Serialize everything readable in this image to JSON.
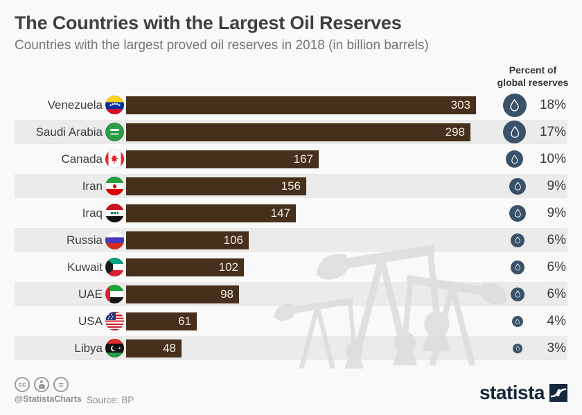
{
  "header": {
    "title": "The Countries with the Largest Oil Reserves",
    "subtitle": "Countries with the largest proved oil reserves in 2018 (in billion barrels)",
    "column_header": "Percent of\nglobal reserves"
  },
  "chart_data": {
    "type": "bar",
    "orientation": "horizontal",
    "title": "The Countries with the Largest Oil Reserves",
    "subtitle": "Countries with the largest proved oil reserves in 2018 (in billion barrels)",
    "unit": "billion barrels",
    "year": "2018",
    "xlim": [
      0,
      303
    ],
    "value_label_position": "inside-end",
    "percent_icon": "oil-drop-icon",
    "rows": [
      {
        "country": "Venezuela",
        "value": 303,
        "percent": 18,
        "percent_label": "18%"
      },
      {
        "country": "Saudi Arabia",
        "value": 298,
        "percent": 17,
        "percent_label": "17%"
      },
      {
        "country": "Canada",
        "value": 167,
        "percent": 10,
        "percent_label": "10%"
      },
      {
        "country": "Iran",
        "value": 156,
        "percent": 9,
        "percent_label": "9%"
      },
      {
        "country": "Iraq",
        "value": 147,
        "percent": 9,
        "percent_label": "9%"
      },
      {
        "country": "Russia",
        "value": 106,
        "percent": 6,
        "percent_label": "6%"
      },
      {
        "country": "Kuwait",
        "value": 102,
        "percent": 6,
        "percent_label": "6%"
      },
      {
        "country": "UAE",
        "value": 98,
        "percent": 6,
        "percent_label": "6%"
      },
      {
        "country": "USA",
        "value": 61,
        "percent": 4,
        "percent_label": "4%"
      },
      {
        "country": "Libya",
        "value": 48,
        "percent": 3,
        "percent_label": "3%"
      }
    ]
  },
  "footer": {
    "license_icons": [
      "cc-icon",
      "attribution-person-icon",
      "equal-icon"
    ],
    "handle": "@StatistaCharts",
    "source": "Source: BP",
    "brand": "statista"
  },
  "colors": {
    "bar": "#46301b",
    "bar_value_text": "#f3ecdf",
    "drop_circle": "#3a5268",
    "row_band": "#ebebeb",
    "background": "#f9f9f9",
    "title": "#3f3f3f",
    "subtitle": "#757575",
    "watermark": "#dcdcdc",
    "brand_navy": "#16283c"
  }
}
